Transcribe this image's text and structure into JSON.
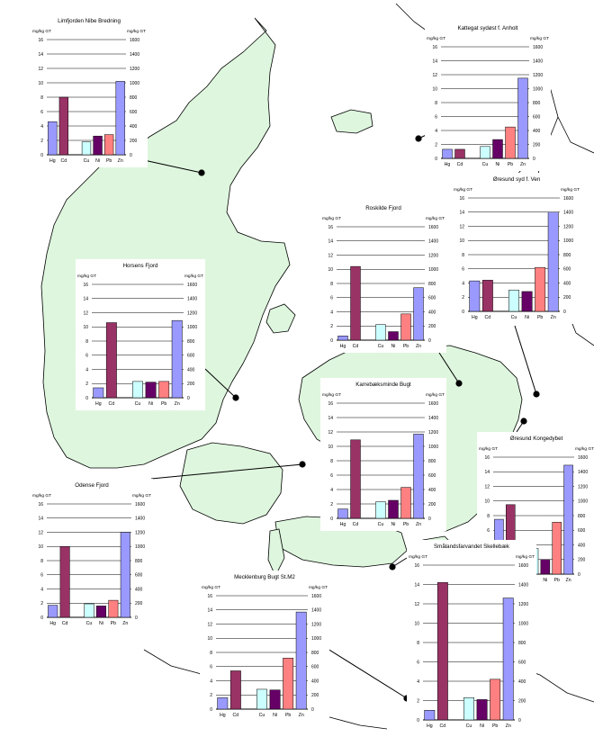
{
  "metal_colors": {
    "Hg": "#9999ff",
    "Cd": "#993366",
    "Cu": "#ccffff",
    "Ni": "#660066",
    "Pb": "#ff8080",
    "Zn": "#9999ff"
  },
  "land_color": "#ddf6dd",
  "chart_data": [
    {
      "type": "bar",
      "title": "Limfjorden Nibe Bredning",
      "left_unit": "mg/kg GT",
      "right_unit": "mg/kg GT",
      "left_ylim": [
        0,
        16
      ],
      "right_ylim": [
        0,
        1600
      ],
      "left_ticks": [
        "0",
        "2",
        "4",
        "6",
        "8",
        "10",
        "12",
        "14",
        "16"
      ],
      "right_ticks": [
        "0",
        "200",
        "400",
        "600",
        "800",
        "1000",
        "1200",
        "1400",
        "1600"
      ],
      "categories": [
        "Hg",
        "Cd",
        "Cu",
        "Ni",
        "Pb",
        "Zn"
      ],
      "values": [
        4.6,
        8.0,
        1.8,
        2.6,
        2.8,
        1020
      ],
      "axis": [
        "left",
        "left",
        "left",
        "left",
        "left",
        "right"
      ],
      "site": "Nibe Bredning"
    },
    {
      "type": "bar",
      "title": "Kattegat sydøst f. Anholt",
      "left_unit": "mg/kg GT",
      "right_unit": "mg/kg GT",
      "left_ylim": [
        0,
        16
      ],
      "right_ylim": [
        0,
        1600
      ],
      "left_ticks": [
        "0",
        "2",
        "4",
        "6",
        "8",
        "10",
        "12",
        "14",
        "16"
      ],
      "right_ticks": [
        "0",
        "200",
        "400",
        "600",
        "800",
        "1000",
        "1200",
        "1400",
        "1600"
      ],
      "categories": [
        "Hg",
        "Cd",
        "Cu",
        "Ni",
        "Pb",
        "Zn"
      ],
      "values": [
        1.3,
        1.3,
        1.7,
        2.7,
        4.5,
        1150
      ],
      "axis": [
        "left",
        "left",
        "left",
        "left",
        "left",
        "right"
      ],
      "site": "Anholt"
    },
    {
      "type": "bar",
      "title": "Øresund syd f. Ven",
      "left_unit": "mg/kg GT",
      "right_unit": "mg/kg GT",
      "left_ylim": [
        0,
        16
      ],
      "right_ylim": [
        0,
        1600
      ],
      "left_ticks": [
        "0",
        "2",
        "4",
        "6",
        "8",
        "10",
        "12",
        "14",
        "16"
      ],
      "right_ticks": [
        "0",
        "200",
        "400",
        "600",
        "800",
        "1000",
        "1200",
        "1400",
        "1600"
      ],
      "categories": [
        "Hg",
        "Cd",
        "Cu",
        "Ni",
        "Pb",
        "Zn"
      ],
      "values": [
        4.3,
        4.4,
        3.0,
        2.8,
        6.2,
        1400
      ],
      "axis": [
        "left",
        "left",
        "left",
        "left",
        "left",
        "right"
      ],
      "site": "Ven"
    },
    {
      "type": "bar",
      "title": "Roskilde Fjord",
      "left_unit": "mg/kg GT",
      "right_unit": "mg/kg GT",
      "left_ylim": [
        0,
        16
      ],
      "right_ylim": [
        0,
        1600
      ],
      "left_ticks": [
        "0",
        "2",
        "4",
        "6",
        "8",
        "10",
        "12",
        "14",
        "16"
      ],
      "right_ticks": [
        "0",
        "200",
        "400",
        "600",
        "800",
        "1000",
        "1200",
        "1400",
        "1600"
      ],
      "categories": [
        "Hg",
        "Cd",
        "Cu",
        "Ni",
        "Pb",
        "Zn"
      ],
      "values": [
        0.6,
        10.4,
        2.2,
        1.2,
        3.7,
        740
      ],
      "axis": [
        "left",
        "left",
        "left",
        "left",
        "left",
        "right"
      ],
      "site": "Roskilde Fjord"
    },
    {
      "type": "bar",
      "title": "Horsens Fjord",
      "left_unit": "mg/kg GT",
      "right_unit": "mg/kg GT",
      "left_ylim": [
        0,
        16
      ],
      "right_ylim": [
        0,
        1600
      ],
      "left_ticks": [
        "0",
        "2",
        "4",
        "6",
        "8",
        "10",
        "12",
        "14",
        "16"
      ],
      "right_ticks": [
        "0",
        "200",
        "400",
        "600",
        "800",
        "1000",
        "1200",
        "1400",
        "1600"
      ],
      "categories": [
        "Hg",
        "Cd",
        "Cu",
        "Ni",
        "Pb",
        "Zn"
      ],
      "values": [
        1.4,
        10.6,
        2.3,
        2.2,
        2.3,
        1090
      ],
      "axis": [
        "left",
        "left",
        "left",
        "left",
        "left",
        "right"
      ],
      "site": "Horsens Fjord"
    },
    {
      "type": "bar",
      "title": "Karrebæksminde Bugt",
      "left_unit": "mg/kg GT",
      "right_unit": "mg/kg GT",
      "left_ylim": [
        0,
        16
      ],
      "right_ylim": [
        0,
        1600
      ],
      "left_ticks": [
        "0",
        "2",
        "4",
        "6",
        "8",
        "10",
        "12",
        "14",
        "16"
      ],
      "right_ticks": [
        "0",
        "200",
        "400",
        "600",
        "800",
        "1000",
        "1200",
        "1400",
        "1600"
      ],
      "categories": [
        "Hg",
        "Cd",
        "Cu",
        "Ni",
        "Pb",
        "Zn"
      ],
      "values": [
        1.3,
        10.9,
        2.3,
        2.5,
        4.3,
        1170
      ],
      "axis": [
        "left",
        "left",
        "left",
        "left",
        "left",
        "right"
      ],
      "site": "Karrebæksminde Bugt"
    },
    {
      "type": "bar",
      "title": "Øresund Kongedybet",
      "left_unit": "mg/kg GT",
      "right_unit": "mg/kg GT",
      "left_ylim": [
        0,
        16
      ],
      "right_ylim": [
        0,
        1600
      ],
      "left_ticks": [
        "0",
        "2",
        "4",
        "6",
        "8",
        "10",
        "12",
        "14",
        "16"
      ],
      "right_ticks": [
        "0",
        "200",
        "400",
        "600",
        "800",
        "1000",
        "1200",
        "1400",
        "1600"
      ],
      "categories": [
        "Hg",
        "Cd",
        "Cu",
        "Ni",
        "Pb",
        "Zn"
      ],
      "values": [
        7.5,
        9.5,
        3.5,
        2.0,
        7.1,
        1490
      ],
      "axis": [
        "left",
        "left",
        "left",
        "left",
        "left",
        "right"
      ],
      "site": "Kongedybet"
    },
    {
      "type": "bar",
      "title": "Odense Fjord",
      "left_unit": "mg/kg GT",
      "right_unit": "mg/kg GT",
      "left_ylim": [
        0,
        16
      ],
      "right_ylim": [
        0,
        1600
      ],
      "left_ticks": [
        "0",
        "2",
        "4",
        "6",
        "8",
        "10",
        "12",
        "14",
        "16"
      ],
      "right_ticks": [
        "0",
        "200",
        "400",
        "600",
        "800",
        "1000",
        "1200",
        "1400",
        "1600"
      ],
      "categories": [
        "Hg",
        "Cd",
        "Cu",
        "Ni",
        "Pb",
        "Zn"
      ],
      "values": [
        1.7,
        10.0,
        1.9,
        1.6,
        2.4,
        1200
      ],
      "axis": [
        "left",
        "left",
        "left",
        "left",
        "left",
        "right"
      ],
      "site": "Odense Fjord"
    },
    {
      "type": "bar",
      "title": "Mecklenburg Bugt St.M2",
      "left_unit": "mg/kg GT",
      "right_unit": "mg/kg GT",
      "left_ylim": [
        0,
        16
      ],
      "right_ylim": [
        0,
        1600
      ],
      "left_ticks": [
        "0",
        "2",
        "4",
        "6",
        "8",
        "10",
        "12",
        "14",
        "16"
      ],
      "right_ticks": [
        "0",
        "200",
        "400",
        "600",
        "800",
        "1000",
        "1200",
        "1400",
        "1600"
      ],
      "categories": [
        "Hg",
        "Cd",
        "Cu",
        "Ni",
        "Pb",
        "Zn"
      ],
      "values": [
        1.6,
        5.4,
        2.8,
        2.7,
        7.2,
        1370
      ],
      "axis": [
        "left",
        "left",
        "left",
        "left",
        "left",
        "right"
      ],
      "site": "Mecklenburg Bugt"
    },
    {
      "type": "bar",
      "title": "Smålandsfarvandet Skellebæk",
      "left_unit": "mg/kg GT",
      "right_unit": "mg/kg GT",
      "left_ylim": [
        0,
        16
      ],
      "right_ylim": [
        0,
        1600
      ],
      "left_ticks": [
        "0",
        "2",
        "4",
        "6",
        "8",
        "10",
        "12",
        "14",
        "16"
      ],
      "right_ticks": [
        "0",
        "200",
        "400",
        "600",
        "800",
        "1000",
        "1200",
        "1400",
        "1600"
      ],
      "categories": [
        "Hg",
        "Cd",
        "Cu",
        "Ni",
        "Pb",
        "Zn"
      ],
      "values": [
        1.0,
        14.2,
        2.3,
        2.1,
        4.2,
        1260
      ],
      "axis": [
        "left",
        "left",
        "left",
        "left",
        "left",
        "right"
      ],
      "site": "Smålandsfarvandet"
    }
  ]
}
